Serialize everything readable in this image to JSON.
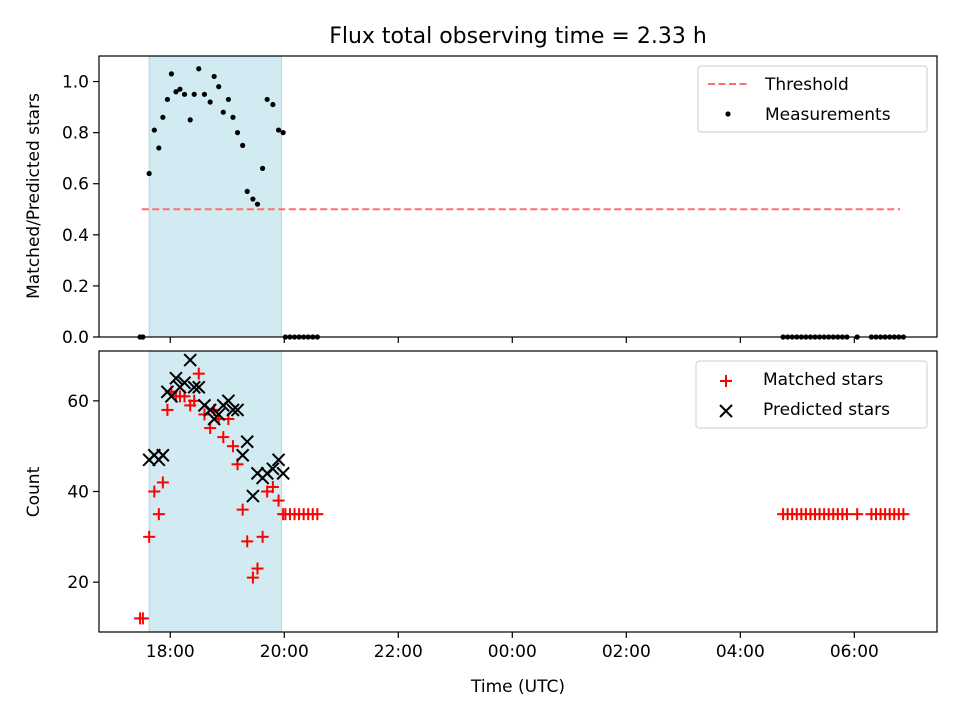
{
  "title": "Flux total observing time = 2.33 h",
  "colors": {
    "span": "#add8e6",
    "threshold": "#ff6f6f",
    "measurement": "#000000",
    "matched": "#ff0000",
    "predicted": "#000000"
  },
  "chart_data": [
    {
      "type": "scatter",
      "panel": "top",
      "ylabel": "Matched/Predicted stars",
      "xlim_hours": [
        16.75,
        31.45
      ],
      "ylim": [
        0,
        1.1
      ],
      "yticks": [
        0.0,
        0.2,
        0.4,
        0.6,
        0.8,
        1.0
      ],
      "ytick_labels": [
        "0.0",
        "0.2",
        "0.4",
        "0.6",
        "0.8",
        "1.0"
      ],
      "xtick_hours": [
        18,
        20,
        22,
        24,
        26,
        28,
        30
      ],
      "legend": {
        "placement": "top-right",
        "labels": [
          "Threshold",
          "Measurements"
        ]
      },
      "shaded_span_hours": [
        17.63,
        19.95
      ],
      "threshold": {
        "name": "Threshold",
        "y": 0.5,
        "x_range_hours": [
          17.5,
          30.8
        ],
        "style": "dashed"
      },
      "series": [
        {
          "name": "Measurements",
          "marker": "dot",
          "points": [
            [
              17.47,
              0.0
            ],
            [
              17.52,
              0.0
            ],
            [
              17.63,
              0.64
            ],
            [
              17.72,
              0.81
            ],
            [
              17.8,
              0.74
            ],
            [
              17.87,
              0.86
            ],
            [
              17.95,
              0.93
            ],
            [
              18.02,
              1.03
            ],
            [
              18.1,
              0.96
            ],
            [
              18.17,
              0.97
            ],
            [
              18.25,
              0.95
            ],
            [
              18.35,
              0.85
            ],
            [
              18.42,
              0.95
            ],
            [
              18.5,
              1.05
            ],
            [
              18.6,
              0.95
            ],
            [
              18.7,
              0.92
            ],
            [
              18.77,
              1.02
            ],
            [
              18.85,
              0.98
            ],
            [
              18.93,
              0.88
            ],
            [
              19.02,
              0.93
            ],
            [
              19.1,
              0.86
            ],
            [
              19.18,
              0.8
            ],
            [
              19.27,
              0.75
            ],
            [
              19.35,
              0.57
            ],
            [
              19.45,
              0.54
            ],
            [
              19.53,
              0.52
            ],
            [
              19.62,
              0.66
            ],
            [
              19.7,
              0.93
            ],
            [
              19.8,
              0.91
            ],
            [
              19.9,
              0.81
            ],
            [
              19.98,
              0.8
            ],
            [
              20.02,
              0.0
            ],
            [
              20.1,
              0.0
            ],
            [
              20.18,
              0.0
            ],
            [
              20.26,
              0.0
            ],
            [
              20.34,
              0.0
            ],
            [
              20.42,
              0.0
            ],
            [
              20.5,
              0.0
            ],
            [
              20.58,
              0.0
            ],
            [
              28.75,
              0.0
            ],
            [
              28.83,
              0.0
            ],
            [
              28.91,
              0.0
            ],
            [
              28.99,
              0.0
            ],
            [
              29.07,
              0.0
            ],
            [
              29.15,
              0.0
            ],
            [
              29.23,
              0.0
            ],
            [
              29.31,
              0.0
            ],
            [
              29.39,
              0.0
            ],
            [
              29.47,
              0.0
            ],
            [
              29.55,
              0.0
            ],
            [
              29.63,
              0.0
            ],
            [
              29.71,
              0.0
            ],
            [
              29.79,
              0.0
            ],
            [
              29.87,
              0.0
            ],
            [
              30.05,
              0.0
            ],
            [
              30.3,
              0.0
            ],
            [
              30.38,
              0.0
            ],
            [
              30.46,
              0.0
            ],
            [
              30.54,
              0.0
            ],
            [
              30.62,
              0.0
            ],
            [
              30.7,
              0.0
            ],
            [
              30.78,
              0.0
            ],
            [
              30.86,
              0.0
            ]
          ]
        }
      ]
    },
    {
      "type": "scatter",
      "panel": "bottom",
      "ylabel": "Count",
      "xlabel": "Time (UTC)",
      "xlim_hours": [
        16.75,
        31.45
      ],
      "ylim": [
        9,
        71
      ],
      "yticks": [
        20,
        40,
        60
      ],
      "ytick_labels": [
        "20",
        "40",
        "60"
      ],
      "xtick_hours": [
        18,
        20,
        22,
        24,
        26,
        28,
        30
      ],
      "xtick_labels": [
        "18:00",
        "20:00",
        "22:00",
        "00:00",
        "02:00",
        "04:00",
        "06:00"
      ],
      "legend": {
        "placement": "top-right",
        "labels": [
          "Matched stars",
          "Predicted stars"
        ]
      },
      "shaded_span_hours": [
        17.63,
        19.95
      ],
      "series": [
        {
          "name": "Matched stars",
          "marker": "plus",
          "points": [
            [
              17.47,
              12
            ],
            [
              17.52,
              12
            ],
            [
              17.63,
              30
            ],
            [
              17.72,
              40
            ],
            [
              17.8,
              35
            ],
            [
              17.87,
              42
            ],
            [
              17.95,
              58
            ],
            [
              18.02,
              62
            ],
            [
              18.1,
              61
            ],
            [
              18.17,
              61
            ],
            [
              18.25,
              61
            ],
            [
              18.35,
              59
            ],
            [
              18.42,
              60
            ],
            [
              18.5,
              66
            ],
            [
              18.6,
              57
            ],
            [
              18.7,
              54
            ],
            [
              18.77,
              58
            ],
            [
              18.85,
              56
            ],
            [
              18.93,
              52
            ],
            [
              19.02,
              56
            ],
            [
              19.1,
              50
            ],
            [
              19.18,
              46
            ],
            [
              19.27,
              36
            ],
            [
              19.35,
              29
            ],
            [
              19.45,
              21
            ],
            [
              19.53,
              23
            ],
            [
              19.62,
              30
            ],
            [
              19.7,
              40
            ],
            [
              19.8,
              41
            ],
            [
              19.9,
              38
            ],
            [
              19.98,
              35
            ],
            [
              20.02,
              35
            ],
            [
              20.1,
              35
            ],
            [
              20.18,
              35
            ],
            [
              20.26,
              35
            ],
            [
              20.34,
              35
            ],
            [
              20.42,
              35
            ],
            [
              20.5,
              35
            ],
            [
              20.58,
              35
            ],
            [
              28.75,
              35
            ],
            [
              28.83,
              35
            ],
            [
              28.91,
              35
            ],
            [
              28.99,
              35
            ],
            [
              29.07,
              35
            ],
            [
              29.15,
              35
            ],
            [
              29.23,
              35
            ],
            [
              29.31,
              35
            ],
            [
              29.39,
              35
            ],
            [
              29.47,
              35
            ],
            [
              29.55,
              35
            ],
            [
              29.63,
              35
            ],
            [
              29.71,
              35
            ],
            [
              29.79,
              35
            ],
            [
              29.87,
              35
            ],
            [
              30.05,
              35
            ],
            [
              30.3,
              35
            ],
            [
              30.38,
              35
            ],
            [
              30.46,
              35
            ],
            [
              30.54,
              35
            ],
            [
              30.62,
              35
            ],
            [
              30.7,
              35
            ],
            [
              30.78,
              35
            ],
            [
              30.86,
              35
            ]
          ]
        },
        {
          "name": "Predicted stars",
          "marker": "x",
          "points": [
            [
              17.63,
              47
            ],
            [
              17.72,
              48
            ],
            [
              17.8,
              47
            ],
            [
              17.87,
              48
            ],
            [
              17.95,
              62
            ],
            [
              18.02,
              61
            ],
            [
              18.1,
              65
            ],
            [
              18.17,
              63
            ],
            [
              18.25,
              64
            ],
            [
              18.35,
              69
            ],
            [
              18.42,
              63
            ],
            [
              18.5,
              63
            ],
            [
              18.6,
              59
            ],
            [
              18.7,
              58
            ],
            [
              18.77,
              56
            ],
            [
              18.85,
              57
            ],
            [
              18.93,
              59
            ],
            [
              19.02,
              60
            ],
            [
              19.1,
              58
            ],
            [
              19.18,
              58
            ],
            [
              19.27,
              48
            ],
            [
              19.35,
              51
            ],
            [
              19.45,
              39
            ],
            [
              19.53,
              44
            ],
            [
              19.62,
              43
            ],
            [
              19.7,
              44
            ],
            [
              19.8,
              45
            ],
            [
              19.9,
              47
            ],
            [
              19.98,
              44
            ]
          ]
        }
      ]
    }
  ]
}
